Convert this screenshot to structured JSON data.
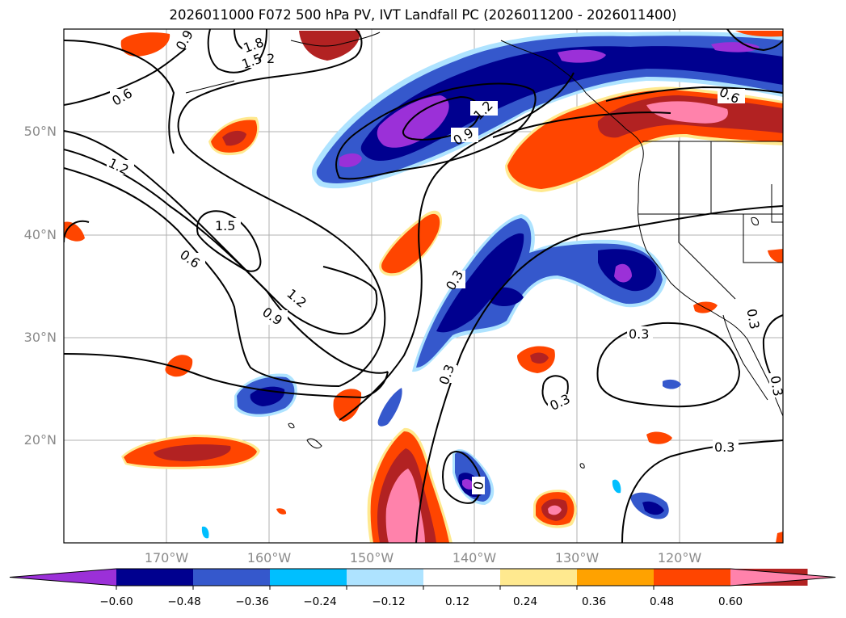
{
  "title": "2026011000 F072 500 hPa PV, IVT Landfall PC (2026011200 - 2026011400)",
  "map": {
    "lon_ticks": [
      "170°W",
      "160°W",
      "150°W",
      "140°W",
      "130°W",
      "120°W"
    ],
    "lat_ticks": [
      "50°N",
      "40°N",
      "30°N",
      "20°N"
    ],
    "contour_labels": [
      "1.8",
      "1.5",
      "2",
      "0.9",
      "0.6",
      "1.2",
      "1.5",
      "0.6",
      "1.2",
      "0.9",
      "1.2",
      "0.9",
      "0.3",
      "0.3",
      "0.3",
      "0.3",
      "0.3",
      "0.6",
      "0.3",
      "0.3",
      "0"
    ]
  },
  "colorbar": {
    "ticks": [
      "−0.60",
      "−0.48",
      "−0.36",
      "−0.24",
      "−0.12",
      "0.12",
      "0.24",
      "0.36",
      "0.48",
      "0.60"
    ],
    "colors": [
      "#9b30d8",
      "#00008f",
      "#3558cc",
      "#00bfff",
      "#aee3ff",
      "#ffffff",
      "#ffe98f",
      "#ffa200",
      "#ff4500",
      "#b22222",
      "#ff82ab"
    ]
  }
}
